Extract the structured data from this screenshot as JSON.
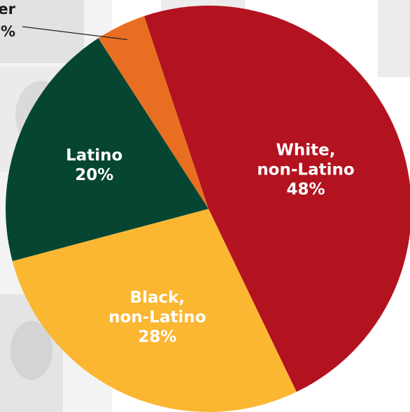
{
  "chart_data": {
    "type": "pie",
    "slices": [
      {
        "label_lines": [
          "White,",
          "non-Latino",
          "48%"
        ],
        "value": 48,
        "color": "#b3121f"
      },
      {
        "label_lines": [
          "Black,",
          "non-Latino",
          "28%"
        ],
        "value": 28,
        "color": "#fbb732"
      },
      {
        "label_lines": [
          "Latino",
          "20%"
        ],
        "value": 20,
        "color": "#064532"
      },
      {
        "label_lines": [
          "er",
          "%"
        ],
        "value": 4,
        "color": "#e86f22"
      }
    ]
  }
}
